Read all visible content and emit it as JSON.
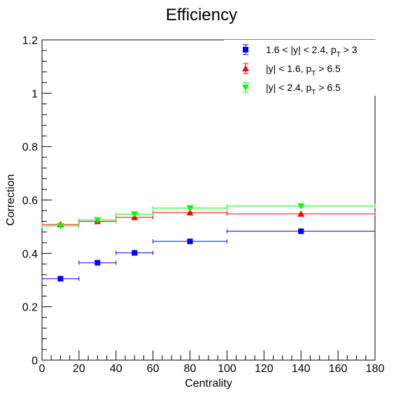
{
  "chart_data": {
    "type": "scatter",
    "title": "Efficiency",
    "xlabel": "Centrality",
    "ylabel": "Correction",
    "xlim": [
      0,
      180
    ],
    "ylim": [
      0,
      1.2
    ],
    "x_ticks": [
      "0",
      "20",
      "40",
      "60",
      "80",
      "100",
      "120",
      "140",
      "160",
      "180"
    ],
    "y_ticks": [
      "0",
      "0.2",
      "0.4",
      "0.6",
      "0.8",
      "1",
      "1.2"
    ],
    "grid": false,
    "legend_position": "top-right",
    "series": [
      {
        "name": "1.6 < |y| < 2.4, p_T > 3",
        "legend_main": "1.6 < |y| < 2.4, p",
        "legend_sub": "T",
        "legend_tail": " > 3",
        "marker": "square",
        "color": "#0000ff",
        "points": [
          {
            "x": 10,
            "xlow": 0,
            "xhigh": 20,
            "y": 0.305
          },
          {
            "x": 30,
            "xlow": 20,
            "xhigh": 40,
            "y": 0.365
          },
          {
            "x": 50,
            "xlow": 40,
            "xhigh": 60,
            "y": 0.402
          },
          {
            "x": 80,
            "xlow": 60,
            "xhigh": 100,
            "y": 0.445
          },
          {
            "x": 140,
            "xlow": 100,
            "xhigh": 180,
            "y": 0.483
          }
        ]
      },
      {
        "name": "|y| < 1.6, p_T > 6.5",
        "legend_main": "|y| < 1.6, p",
        "legend_sub": "T",
        "legend_tail": " > 6.5",
        "marker": "triangle-up",
        "color": "#ff0000",
        "points": [
          {
            "x": 10,
            "xlow": 0,
            "xhigh": 20,
            "y": 0.508
          },
          {
            "x": 30,
            "xlow": 20,
            "xhigh": 40,
            "y": 0.52
          },
          {
            "x": 50,
            "xlow": 40,
            "xhigh": 60,
            "y": 0.535
          },
          {
            "x": 80,
            "xlow": 60,
            "xhigh": 100,
            "y": 0.553
          },
          {
            "x": 140,
            "xlow": 100,
            "xhigh": 180,
            "y": 0.548
          }
        ]
      },
      {
        "name": "|y| < 2.4, p_T > 6.5",
        "legend_main": "|y| < 2.4, p",
        "legend_sub": "T",
        "legend_tail": " > 6.5",
        "marker": "triangle-down",
        "color": "#00ff00",
        "points": [
          {
            "x": 10,
            "xlow": 0,
            "xhigh": 20,
            "y": 0.503
          },
          {
            "x": 30,
            "xlow": 20,
            "xhigh": 40,
            "y": 0.525
          },
          {
            "x": 50,
            "xlow": 40,
            "xhigh": 60,
            "y": 0.547
          },
          {
            "x": 80,
            "xlow": 60,
            "xhigh": 100,
            "y": 0.57
          },
          {
            "x": 140,
            "xlow": 100,
            "xhigh": 180,
            "y": 0.577
          }
        ]
      }
    ]
  }
}
